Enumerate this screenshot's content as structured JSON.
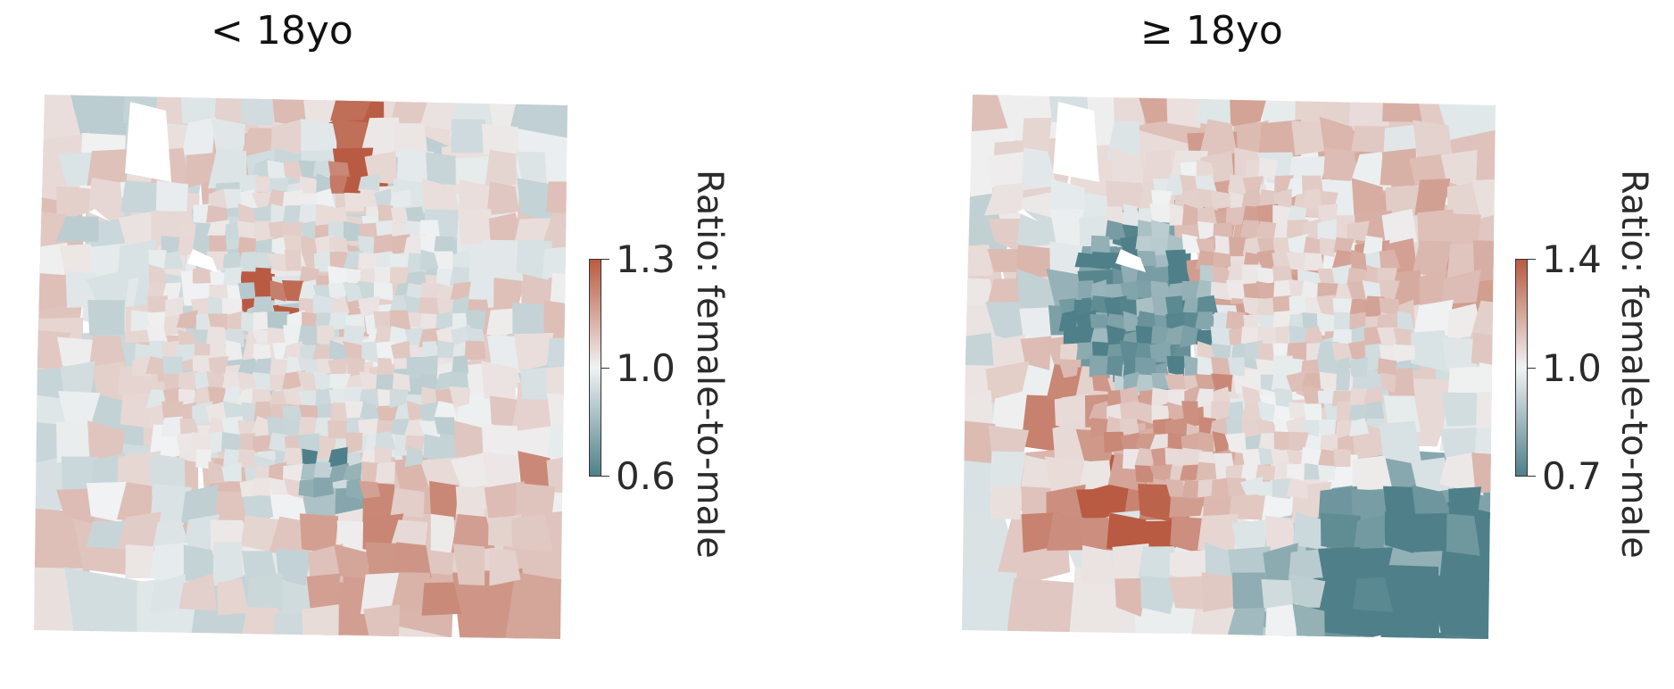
{
  "panels": [
    {
      "title": "< 18yo",
      "colorbar": {
        "label": "Ratio: female-to-male",
        "ticks": [
          "1.3",
          "1.0",
          "0.6"
        ],
        "min": 0.6,
        "max": 1.3,
        "center": 1.0,
        "colors": {
          "high": "#b95b42",
          "mid": "#f0f2f3",
          "low": "#4f8089"
        }
      }
    },
    {
      "title": "≥ 18yo",
      "colorbar": {
        "label": "Ratio: female-to-male",
        "ticks": [
          "1.4",
          "1.0",
          "0.7"
        ],
        "min": 0.7,
        "max": 1.4,
        "center": 1.0,
        "colors": {
          "high": "#b95b42",
          "mid": "#f0f2f3",
          "low": "#4f8089"
        }
      }
    }
  ]
}
